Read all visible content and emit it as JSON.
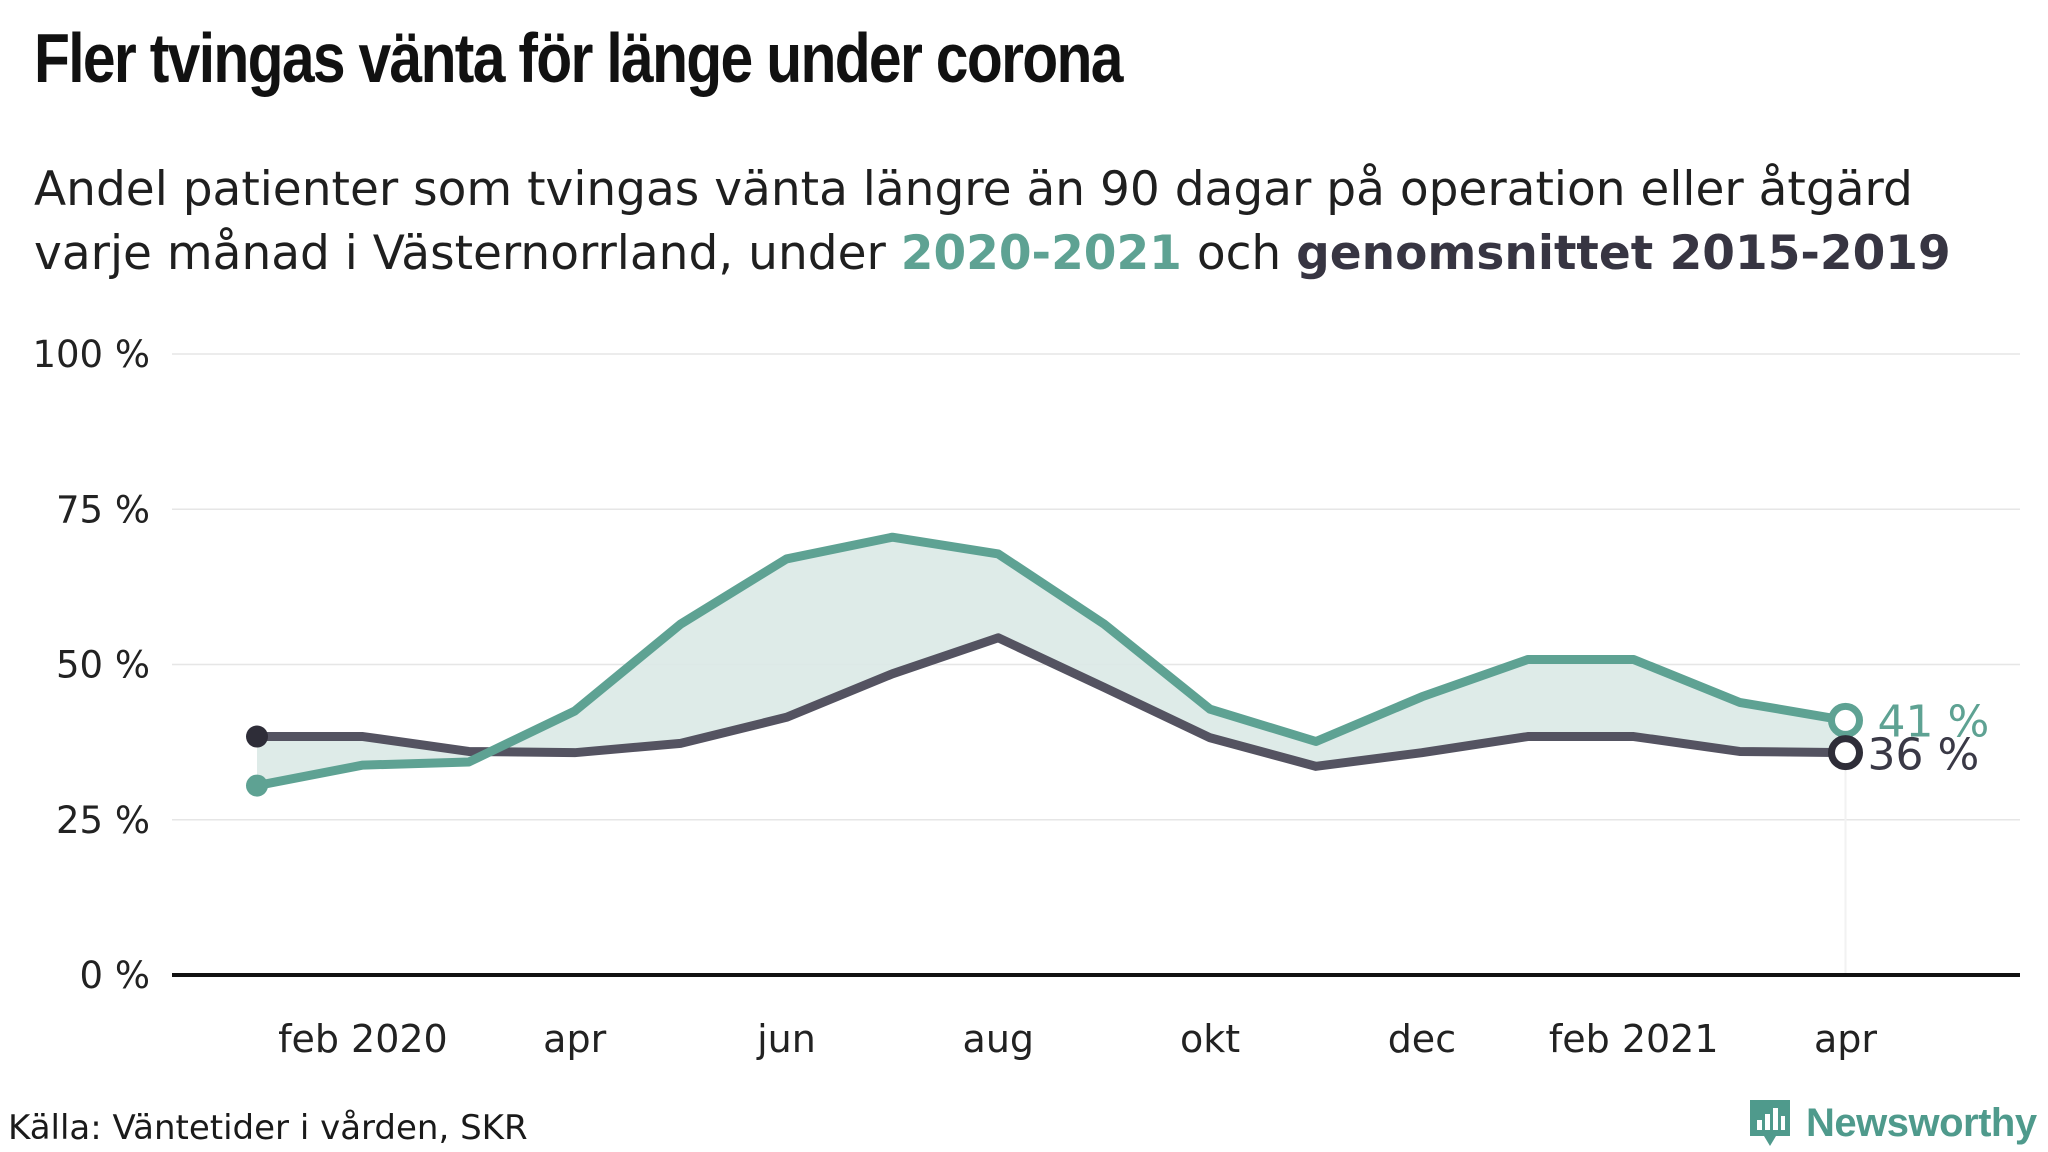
{
  "title": "Fler tvingas vänta för länge under corona",
  "subtitle": {
    "line1": "Andel patienter som tvingas vänta längre än 90 dagar på operation eller åtgärd",
    "line2_prefix": "varje månad i Västernorrland, under ",
    "highlight_a": "2020-2021",
    "middle": " och ",
    "highlight_b": "genomsnittet 2015-2019"
  },
  "source": "Källa: Väntetider i vården, SKR",
  "brand": "Newsworthy",
  "colors": {
    "current": "#5ea293",
    "average": "#545361",
    "fill": "#dae9e6",
    "axis": "#111111",
    "grid": "#e6e6e6"
  },
  "chart_data": {
    "type": "line",
    "x": [
      "2020-01",
      "2020-02",
      "2020-03",
      "2020-04",
      "2020-05",
      "2020-06",
      "2020-07",
      "2020-08",
      "2020-09",
      "2020-10",
      "2020-11",
      "2020-12",
      "2021-01",
      "2021-02",
      "2021-03",
      "2021-04"
    ],
    "x_tick_labels": [
      {
        "x": "2020-02",
        "label": "feb 2020"
      },
      {
        "x": "2020-04",
        "label": "apr"
      },
      {
        "x": "2020-06",
        "label": "jun"
      },
      {
        "x": "2020-08",
        "label": "aug"
      },
      {
        "x": "2020-10",
        "label": "okt"
      },
      {
        "x": "2020-12",
        "label": "dec"
      },
      {
        "x": "2021-02",
        "label": "feb 2021"
      },
      {
        "x": "2021-04",
        "label": "apr"
      }
    ],
    "y_ticks": [
      {
        "value": 0,
        "label": "0 %"
      },
      {
        "value": 25,
        "label": "25 %"
      },
      {
        "value": 50,
        "label": "50 %"
      },
      {
        "value": 75,
        "label": "75 %"
      },
      {
        "value": 100,
        "label": "100 %"
      }
    ],
    "ylim": [
      0,
      100
    ],
    "grid": true,
    "fill_between": true,
    "series": [
      {
        "key": "current",
        "values": [
          30.5,
          33.8,
          34.3,
          42.5,
          56.5,
          67.0,
          70.5,
          67.8,
          56.5,
          42.8,
          37.6,
          44.8,
          50.8,
          50.8,
          43.9,
          41.0
        ],
        "end_label": "41 %"
      },
      {
        "key": "average",
        "values": [
          38.4,
          38.4,
          36.0,
          35.8,
          37.3,
          41.5,
          48.5,
          54.3,
          46.3,
          38.2,
          33.6,
          35.8,
          38.4,
          38.4,
          36.0,
          35.8
        ],
        "end_label": "36 %"
      }
    ]
  }
}
